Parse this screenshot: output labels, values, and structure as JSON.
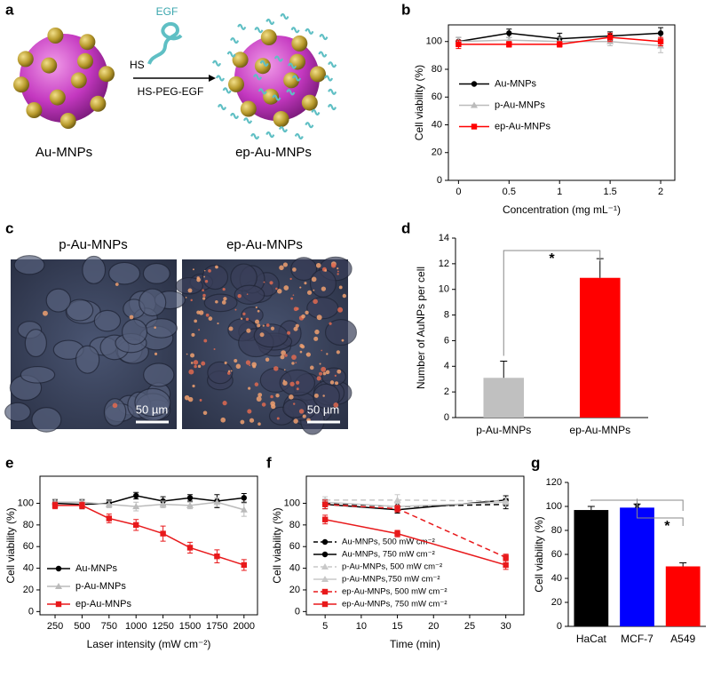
{
  "panel_labels": [
    "a",
    "b",
    "c",
    "d",
    "e",
    "f",
    "g"
  ],
  "scheme": {
    "egf": "EGF",
    "hs": "HS",
    "linker": "HS-PEG-EGF",
    "left": "Au-MNPs",
    "right": "ep-Au-MNPs"
  },
  "micrographs": {
    "titles": [
      "p-Au-MNPs",
      "ep-Au-MNPs"
    ],
    "scale_bars": [
      "50 µm",
      "50 µm"
    ]
  },
  "chart_data": [
    {
      "type": "line",
      "xlabel": "Concentration (mg mL⁻¹)",
      "ylabel": "Cell viability (%)",
      "x": [
        0,
        0.5,
        1,
        1.5,
        2
      ],
      "xlim": [
        -0.1,
        2.14
      ],
      "xticks": [
        0,
        0.5,
        1,
        1.5,
        2
      ],
      "ylim": [
        0,
        112
      ],
      "yticks": [
        0,
        20,
        40,
        60,
        80,
        100
      ],
      "legend": "center left",
      "series": [
        {
          "name": "Au-MNPs",
          "color": "#000000",
          "marker": "circle",
          "dashed": false,
          "values": [
            100,
            106,
            102,
            104,
            106
          ],
          "errors": [
            3,
            3,
            4,
            3,
            4
          ]
        },
        {
          "name": "p-Au-MNPs",
          "color": "#bbbbbb",
          "marker": "triangle",
          "dashed": false,
          "values": [
            100,
            101,
            100,
            100,
            97
          ],
          "errors": [
            3,
            2,
            3,
            3,
            5
          ]
        },
        {
          "name": "ep-Au-MNPs",
          "color": "#ff0000",
          "marker": "square",
          "dashed": false,
          "values": [
            98,
            98,
            98,
            103,
            100
          ],
          "errors": [
            3,
            2,
            2,
            3,
            3
          ]
        }
      ]
    },
    {
      "type": "bar",
      "ylabel": "Number of AuNPs per cell",
      "categories": [
        "p-Au-MNPs",
        "ep-Au-MNPs"
      ],
      "values": [
        3.1,
        10.9
      ],
      "errors": [
        1.3,
        1.5
      ],
      "colors": [
        "#c0c0c0",
        "#ff0000"
      ],
      "ylim": [
        0,
        14
      ],
      "yticks": [
        0,
        2,
        4,
        6,
        8,
        10,
        12,
        14
      ],
      "annotations": [
        "*"
      ]
    },
    {
      "type": "line",
      "xlabel": "Laser intensity (mW cm⁻²)",
      "ylabel": "Cell viability (%)",
      "x": [
        250,
        500,
        750,
        1000,
        1250,
        1500,
        1750,
        2000
      ],
      "xlim": [
        110,
        2125
      ],
      "xticks": [
        250,
        500,
        750,
        1000,
        1250,
        1500,
        1750,
        2000
      ],
      "ylim": [
        -3,
        125
      ],
      "yticks": [
        0,
        20,
        40,
        60,
        80,
        100
      ],
      "legend": "lower left",
      "series": [
        {
          "name": "Au-MNPs",
          "color": "#000000",
          "marker": "circle",
          "dashed": false,
          "values": [
            100,
            99,
            100,
            107,
            102,
            105,
            102,
            105
          ],
          "errors": [
            3,
            4,
            3,
            3,
            4,
            3,
            6,
            4
          ]
        },
        {
          "name": "p-Au-MNPs",
          "color": "#bbbbbb",
          "marker": "triangle",
          "dashed": false,
          "values": [
            101,
            101,
            99,
            97,
            99,
            98,
            101,
            94
          ],
          "errors": [
            3,
            3,
            3,
            4,
            3,
            3,
            4,
            6
          ]
        },
        {
          "name": "ep-Au-MNPs",
          "color": "#e8191b",
          "marker": "square",
          "dashed": false,
          "values": [
            98,
            98,
            86,
            80,
            72,
            59,
            51,
            43
          ],
          "errors": [
            3,
            3,
            4,
            5,
            7,
            5,
            6,
            5
          ]
        }
      ]
    },
    {
      "type": "line",
      "xlabel": "Time (min)",
      "ylabel": "Cell viability (%)",
      "x": [
        5,
        15,
        30
      ],
      "xlim": [
        2.4,
        32.5
      ],
      "xticks": [
        5,
        10,
        15,
        20,
        25,
        30
      ],
      "ylim": [
        -3,
        125
      ],
      "yticks": [
        0,
        20,
        40,
        60,
        80,
        100
      ],
      "legend": "lower left",
      "series": [
        {
          "name": "Au-MNPs, 500 mW cm⁻²",
          "color": "#000000",
          "marker": "circle",
          "dashed": true,
          "values": [
            100,
            97,
            99
          ],
          "errors": [
            3,
            3,
            4
          ]
        },
        {
          "name": "Au-MNPs, 750 mW cm⁻²",
          "color": "#000000",
          "marker": "circle",
          "dashed": false,
          "values": [
            99,
            94,
            103
          ],
          "errors": [
            4,
            3,
            4
          ]
        },
        {
          "name": "p-Au-MNPs, 500 mW cm⁻²",
          "color": "#c8c8c8",
          "marker": "triangle",
          "dashed": true,
          "values": [
            103,
            103,
            102
          ],
          "errors": [
            3,
            5,
            3
          ]
        },
        {
          "name": "p-Au-MNPs,750 mW cm⁻²",
          "color": "#c8c8c8",
          "marker": "triangle",
          "dashed": false,
          "values": [
            101,
            97,
            101
          ],
          "errors": [
            3,
            3,
            4
          ]
        },
        {
          "name": "ep-Au-MNPs, 500 mW cm⁻²",
          "color": "#e8191b",
          "marker": "square",
          "dashed": true,
          "values": [
            99,
            95,
            50
          ],
          "errors": [
            4,
            3,
            3
          ]
        },
        {
          "name": "ep-Au-MNPs, 750 mW cm⁻²",
          "color": "#e8191b",
          "marker": "square",
          "dashed": false,
          "values": [
            85,
            72,
            43
          ],
          "errors": [
            4,
            3,
            4
          ]
        }
      ]
    },
    {
      "type": "bar",
      "ylabel": "Cell viability (%)",
      "categories": [
        "HaCat",
        "MCF-7",
        "A549"
      ],
      "values": [
        97,
        99,
        50
      ],
      "errors": [
        3,
        3,
        3
      ],
      "colors": [
        "#000000",
        "#0000ff",
        "#ff0000"
      ],
      "ylim": [
        0,
        120
      ],
      "yticks": [
        0,
        20,
        40,
        60,
        80,
        100,
        120
      ],
      "annotations": [
        "*",
        "*"
      ]
    }
  ]
}
